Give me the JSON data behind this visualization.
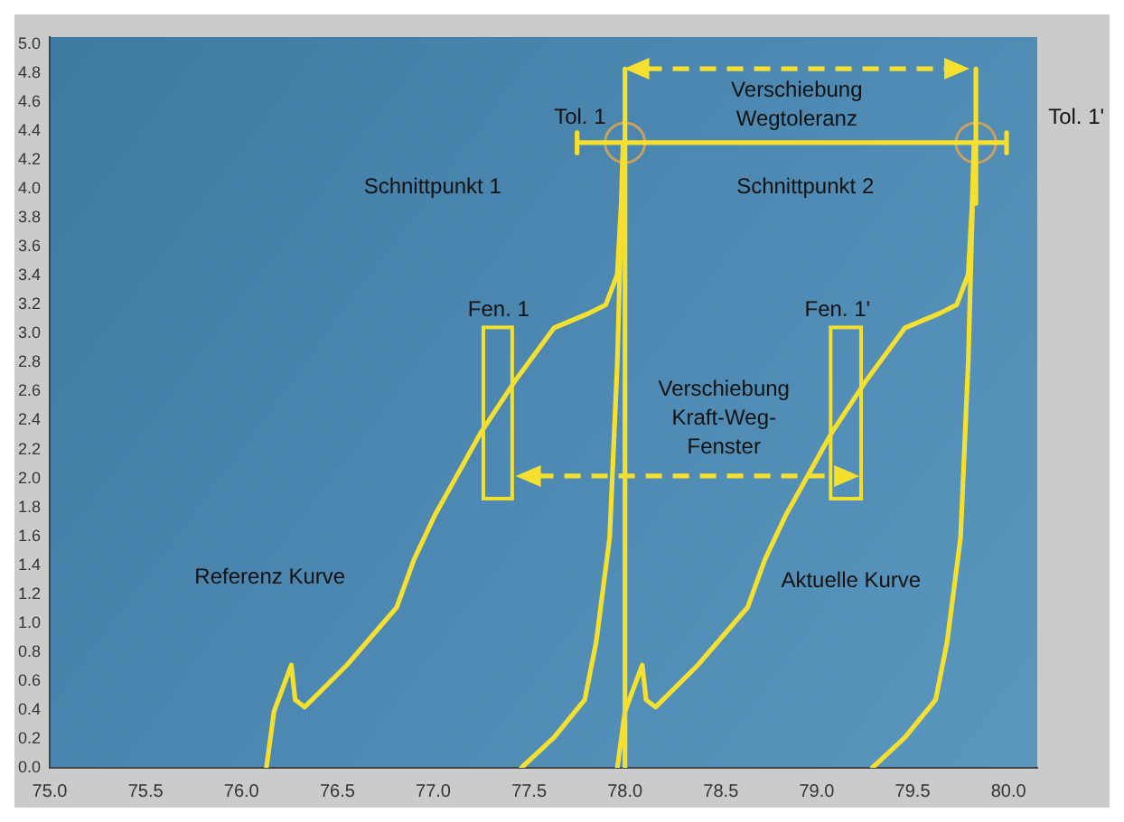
{
  "chart_data": {
    "type": "line",
    "xlim": [
      75,
      80.15
    ],
    "ylim": [
      0,
      5.05
    ],
    "xticks": [
      {
        "value": 75,
        "label": "75.0"
      },
      {
        "value": 75.5,
        "label": "75.5"
      },
      {
        "value": 76,
        "label": "76.0"
      },
      {
        "value": 76.5,
        "label": "76.5"
      },
      {
        "value": 77,
        "label": "77.0"
      },
      {
        "value": 77.5,
        "label": "77.5"
      },
      {
        "value": 78,
        "label": "78.0"
      },
      {
        "value": 78.5,
        "label": "78.5"
      },
      {
        "value": 79,
        "label": "79.0"
      },
      {
        "value": 79.5,
        "label": "79.5"
      },
      {
        "value": 80,
        "label": "80.0"
      }
    ],
    "yticks": [
      {
        "value": 0,
        "label": "0.0"
      },
      {
        "value": 0.2,
        "label": "0.2"
      },
      {
        "value": 0.4,
        "label": "0.4"
      },
      {
        "value": 0.6,
        "label": "0.6"
      },
      {
        "value": 0.8,
        "label": "0.8"
      },
      {
        "value": 1,
        "label": "1.0"
      },
      {
        "value": 1.2,
        "label": "1.2"
      },
      {
        "value": 1.4,
        "label": "1.4"
      },
      {
        "value": 1.6,
        "label": "1.6"
      },
      {
        "value": 1.8,
        "label": "1.8"
      },
      {
        "value": 2,
        "label": "2.0"
      },
      {
        "value": 2.2,
        "label": "2.2"
      },
      {
        "value": 2.4,
        "label": "2.4"
      },
      {
        "value": 2.6,
        "label": "2.6"
      },
      {
        "value": 2.8,
        "label": "2.8"
      },
      {
        "value": 3,
        "label": "3.0"
      },
      {
        "value": 3.2,
        "label": "3.2"
      },
      {
        "value": 3.4,
        "label": "3.4"
      },
      {
        "value": 3.6,
        "label": "3.6"
      },
      {
        "value": 3.8,
        "label": "3.8"
      },
      {
        "value": 4,
        "label": "4.0"
      },
      {
        "value": 4.2,
        "label": "4.2"
      },
      {
        "value": 4.4,
        "label": "4.4"
      },
      {
        "value": 4.6,
        "label": "4.6"
      },
      {
        "value": 4.8,
        "label": "4.8"
      },
      {
        "value": 5,
        "label": "5.0"
      }
    ],
    "grid": false,
    "legend": false,
    "series": [
      {
        "color": "#f5e030",
        "x": [
          76.13,
          76.17,
          76.26,
          76.28,
          76.33,
          76.55,
          76.81,
          76.9,
          77.01,
          77.25,
          77.43,
          77.63,
          77.81,
          77.9,
          77.96,
          77.98,
          77.99,
          77.98,
          77.96,
          77.92,
          77.85,
          77.79,
          77.63,
          77.46
        ],
        "values": [
          0,
          0.39,
          0.71,
          0.47,
          0.42,
          0.71,
          1.11,
          1.44,
          1.75,
          2.32,
          2.68,
          3.04,
          3.14,
          3.2,
          3.41,
          3.89,
          4.32,
          3.77,
          2.8,
          1.59,
          0.87,
          0.47,
          0.21,
          0
        ]
      },
      {
        "color": "#f5e030",
        "x": [
          77.96,
          78.0,
          78.09,
          78.11,
          78.16,
          78.38,
          78.64,
          78.73,
          78.84,
          79.08,
          79.26,
          79.46,
          79.64,
          79.73,
          79.79,
          79.81,
          79.82,
          79.81,
          79.79,
          79.75,
          79.68,
          79.62,
          79.46,
          79.29
        ],
        "values": [
          0,
          0.39,
          0.71,
          0.47,
          0.42,
          0.71,
          1.11,
          1.44,
          1.75,
          2.32,
          2.68,
          3.04,
          3.14,
          3.2,
          3.41,
          3.89,
          4.32,
          3.77,
          2.8,
          1.59,
          0.87,
          0.47,
          0.21,
          0
        ]
      },
      {
        "color": "#f5e030",
        "x": [
          78.0,
          78.0
        ],
        "values": [
          0,
          4.83
        ]
      },
      {
        "color": "#f5e030",
        "x": [
          79.83,
          79.83
        ],
        "values": [
          3.9,
          4.83
        ]
      },
      {
        "color": "#f5e030",
        "x": [
          77.75,
          77.75,
          77.75,
          79.99,
          79.99,
          79.99
        ],
        "values": [
          4.25,
          4.39,
          4.32,
          4.32,
          4.25,
          4.39
        ]
      },
      {
        "type": "scatter",
        "color": "#c8a060",
        "marker": "circle",
        "x": [
          78.0,
          79.83
        ],
        "values": [
          4.32,
          4.32
        ]
      }
    ],
    "annotations": [
      "Tol. 1",
      "Tol. 1'",
      "Verschiebung\nWegtoleranz",
      "Schnittpunkt 1",
      "Schnittpunkt 2",
      "Fen. 1",
      "Fen. 1'",
      "Verschiebung\nKraft-Weg-\nFenster",
      "Referenz Kurve",
      "Aktuelle Kurve"
    ]
  }
}
